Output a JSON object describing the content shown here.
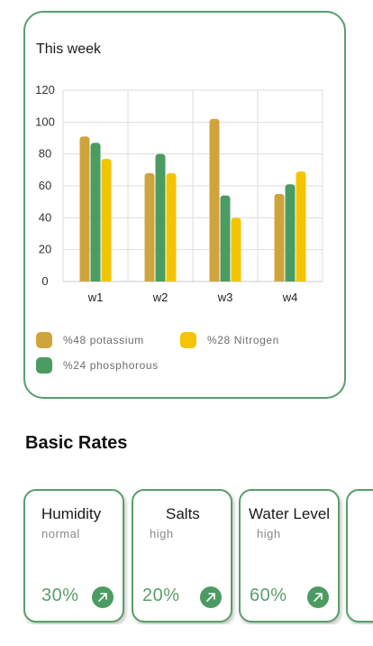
{
  "chart_card": {
    "title": "This week"
  },
  "chart_data": {
    "type": "bar",
    "title": "This week",
    "categories": [
      "w1",
      "w2",
      "w3",
      "w4"
    ],
    "series": [
      {
        "name": "%48 potassium",
        "color": "#d0a43c",
        "values": [
          91,
          68,
          102,
          55
        ]
      },
      {
        "name": "%24 phosphorous",
        "color": "#4b9c63",
        "values": [
          87,
          80,
          54,
          61
        ]
      },
      {
        "name": "%28 Nitrogen",
        "color": "#f5c400",
        "values": [
          77,
          68,
          40,
          69
        ]
      }
    ],
    "yticks": [
      "0",
      "20",
      "40",
      "60",
      "80",
      "100",
      "120"
    ],
    "ylim": [
      0,
      120
    ],
    "grid": true,
    "legend_position": "bottom"
  },
  "section": {
    "title": "Basic Rates"
  },
  "rates": [
    {
      "name": "Humidity",
      "status": "normal",
      "value": "30%",
      "icon": "arrow-up-right-icon"
    },
    {
      "name": "Salts",
      "status": "high",
      "value": "20%",
      "icon": "arrow-up-right-icon"
    },
    {
      "name": "Water Level",
      "status": "high",
      "value": "60%",
      "icon": "arrow-up-right-icon"
    }
  ],
  "colors": {
    "accent": "#5a9e6a",
    "gridline": "#dddddd"
  }
}
